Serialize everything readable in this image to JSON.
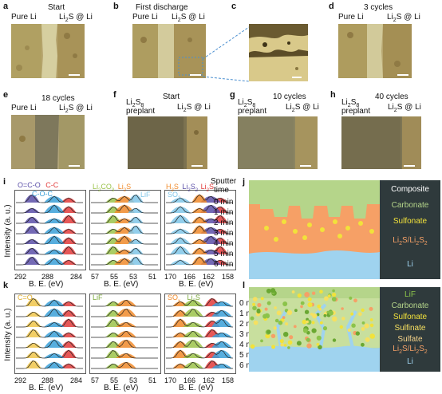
{
  "panels": {
    "a": {
      "letter": "a",
      "title": "Start",
      "left": "Pure Li",
      "right": "Li",
      "right_sub": "2",
      "right_end": "S @ Li"
    },
    "b": {
      "letter": "b",
      "title": "First discharge",
      "left": "Pure Li",
      "right": "Li",
      "right_sub": "2",
      "right_end": "S @ Li"
    },
    "c": {
      "letter": "c"
    },
    "d": {
      "letter": "d",
      "title": "3 cycles",
      "left": "Pure Li",
      "right": "Li",
      "right_sub": "2",
      "right_end": "S @ Li"
    },
    "e": {
      "letter": "e",
      "title": "18 cycles",
      "left": "Pure Li",
      "right": "Li",
      "right_sub": "2",
      "right_end": "S @ Li"
    },
    "f": {
      "letter": "f",
      "title": "Start",
      "left1": "Li",
      "left1_sub": "2",
      "left1_end": "S",
      "left1_sub2": "8",
      "left2": "preplant",
      "right": "Li",
      "right_sub": "2",
      "right_end": "S @ Li"
    },
    "g": {
      "letter": "g",
      "title": "10 cycles",
      "left1": "Li",
      "left1_sub": "2",
      "left1_end": "S",
      "left1_sub2": "8",
      "left2": "preplant",
      "right": "Li",
      "right_sub": "2",
      "right_end": "S @ Li"
    },
    "h": {
      "letter": "h",
      "title": "40 cycles",
      "left1": "Li",
      "left1_sub": "2",
      "left1_end": "S",
      "left1_sub2": "8",
      "left2": "preplant",
      "right": "Li",
      "right_sub": "2",
      "right_end": "S @ Li"
    }
  },
  "xps_i": {
    "letter": "i",
    "ylabel": "Intensity (a. u.)",
    "xlabel": "B. E. (eV)",
    "c1s": {
      "ticks": [
        "292",
        "288",
        "284"
      ],
      "legend": [
        "O=C-O",
        "C-C",
        "C-O-C"
      ],
      "legend_colors": [
        "#5b4fa8",
        "#e23b3b",
        "#3aa0d8"
      ]
    },
    "li1s": {
      "ticks": [
        "57",
        "55",
        "53",
        "51"
      ],
      "legend": [
        "Li",
        "CO",
        "Li",
        "S",
        "LiF"
      ],
      "legend_colors": [
        "#9bc34a",
        "#f08a2a",
        "#7fc6e8"
      ]
    },
    "s2p": {
      "ticks": [
        "170",
        "166",
        "162",
        "158"
      ],
      "legend": [
        "H",
        "S",
        "Li",
        "S",
        "Li",
        "S",
        "SO"
      ],
      "legend_colors": [
        "#f08a2a",
        "#5b4fa8",
        "#e23b3b",
        "#7fc6e8"
      ]
    }
  },
  "xps_k": {
    "letter": "k",
    "ylabel": "Intensity (a. u.)",
    "xlabel": "B. E. (eV)",
    "c1s": {
      "ticks": [
        "292",
        "288",
        "284"
      ],
      "legend": [
        "C=O"
      ],
      "legend_colors": [
        "#f0c64a"
      ]
    },
    "li1s": {
      "ticks": [
        "57",
        "55",
        "53",
        "51"
      ],
      "legend": [
        "LiF"
      ],
      "legend_colors": [
        "#9bc34a"
      ]
    },
    "s2p": {
      "ticks": [
        "170",
        "166",
        "162",
        "158"
      ],
      "legend": [
        "SO",
        "Li",
        "S"
      ],
      "legend_colors": [
        "#f08a2a",
        "#9bc34a"
      ]
    }
  },
  "sputter": {
    "title1": "Sputter",
    "title2": "time",
    "times": [
      "0 min",
      "1 min",
      "2 min",
      "3 min",
      "4 min",
      "5 min",
      "6 min"
    ]
  },
  "schematic_j": {
    "letter": "j",
    "legend": [
      {
        "text": "Composite",
        "color": "#ffffff"
      },
      {
        "text": "Carbonate",
        "color": "#b5d58a"
      },
      {
        "text": "Sulfonate",
        "color": "#f2e23a"
      },
      {
        "text": "Li",
        "sub": "2",
        "mid": "S/Li",
        "sub2": "2",
        "end": "S",
        "sub3": "2",
        "color": "#f6a066"
      },
      {
        "text": "Li",
        "color": "#9fd3ef"
      }
    ]
  },
  "schematic_l": {
    "letter": "l",
    "legend": [
      {
        "text": "LiF",
        "color": "#8bc34a"
      },
      {
        "text": "Carbonate",
        "color": "#b5d58a"
      },
      {
        "text": "Sulfonate",
        "color": "#f2e23a"
      },
      {
        "text": "Sulfinate",
        "color": "#f6e060"
      },
      {
        "text": "Sulfate",
        "color": "#f6d38a"
      },
      {
        "text": "Li",
        "sub": "2",
        "mid": "S/Li",
        "sub2": "2",
        "end": "S",
        "sub3": "2",
        "color": "#f6a066"
      },
      {
        "text": "Li",
        "color": "#9fd3ef"
      }
    ]
  }
}
